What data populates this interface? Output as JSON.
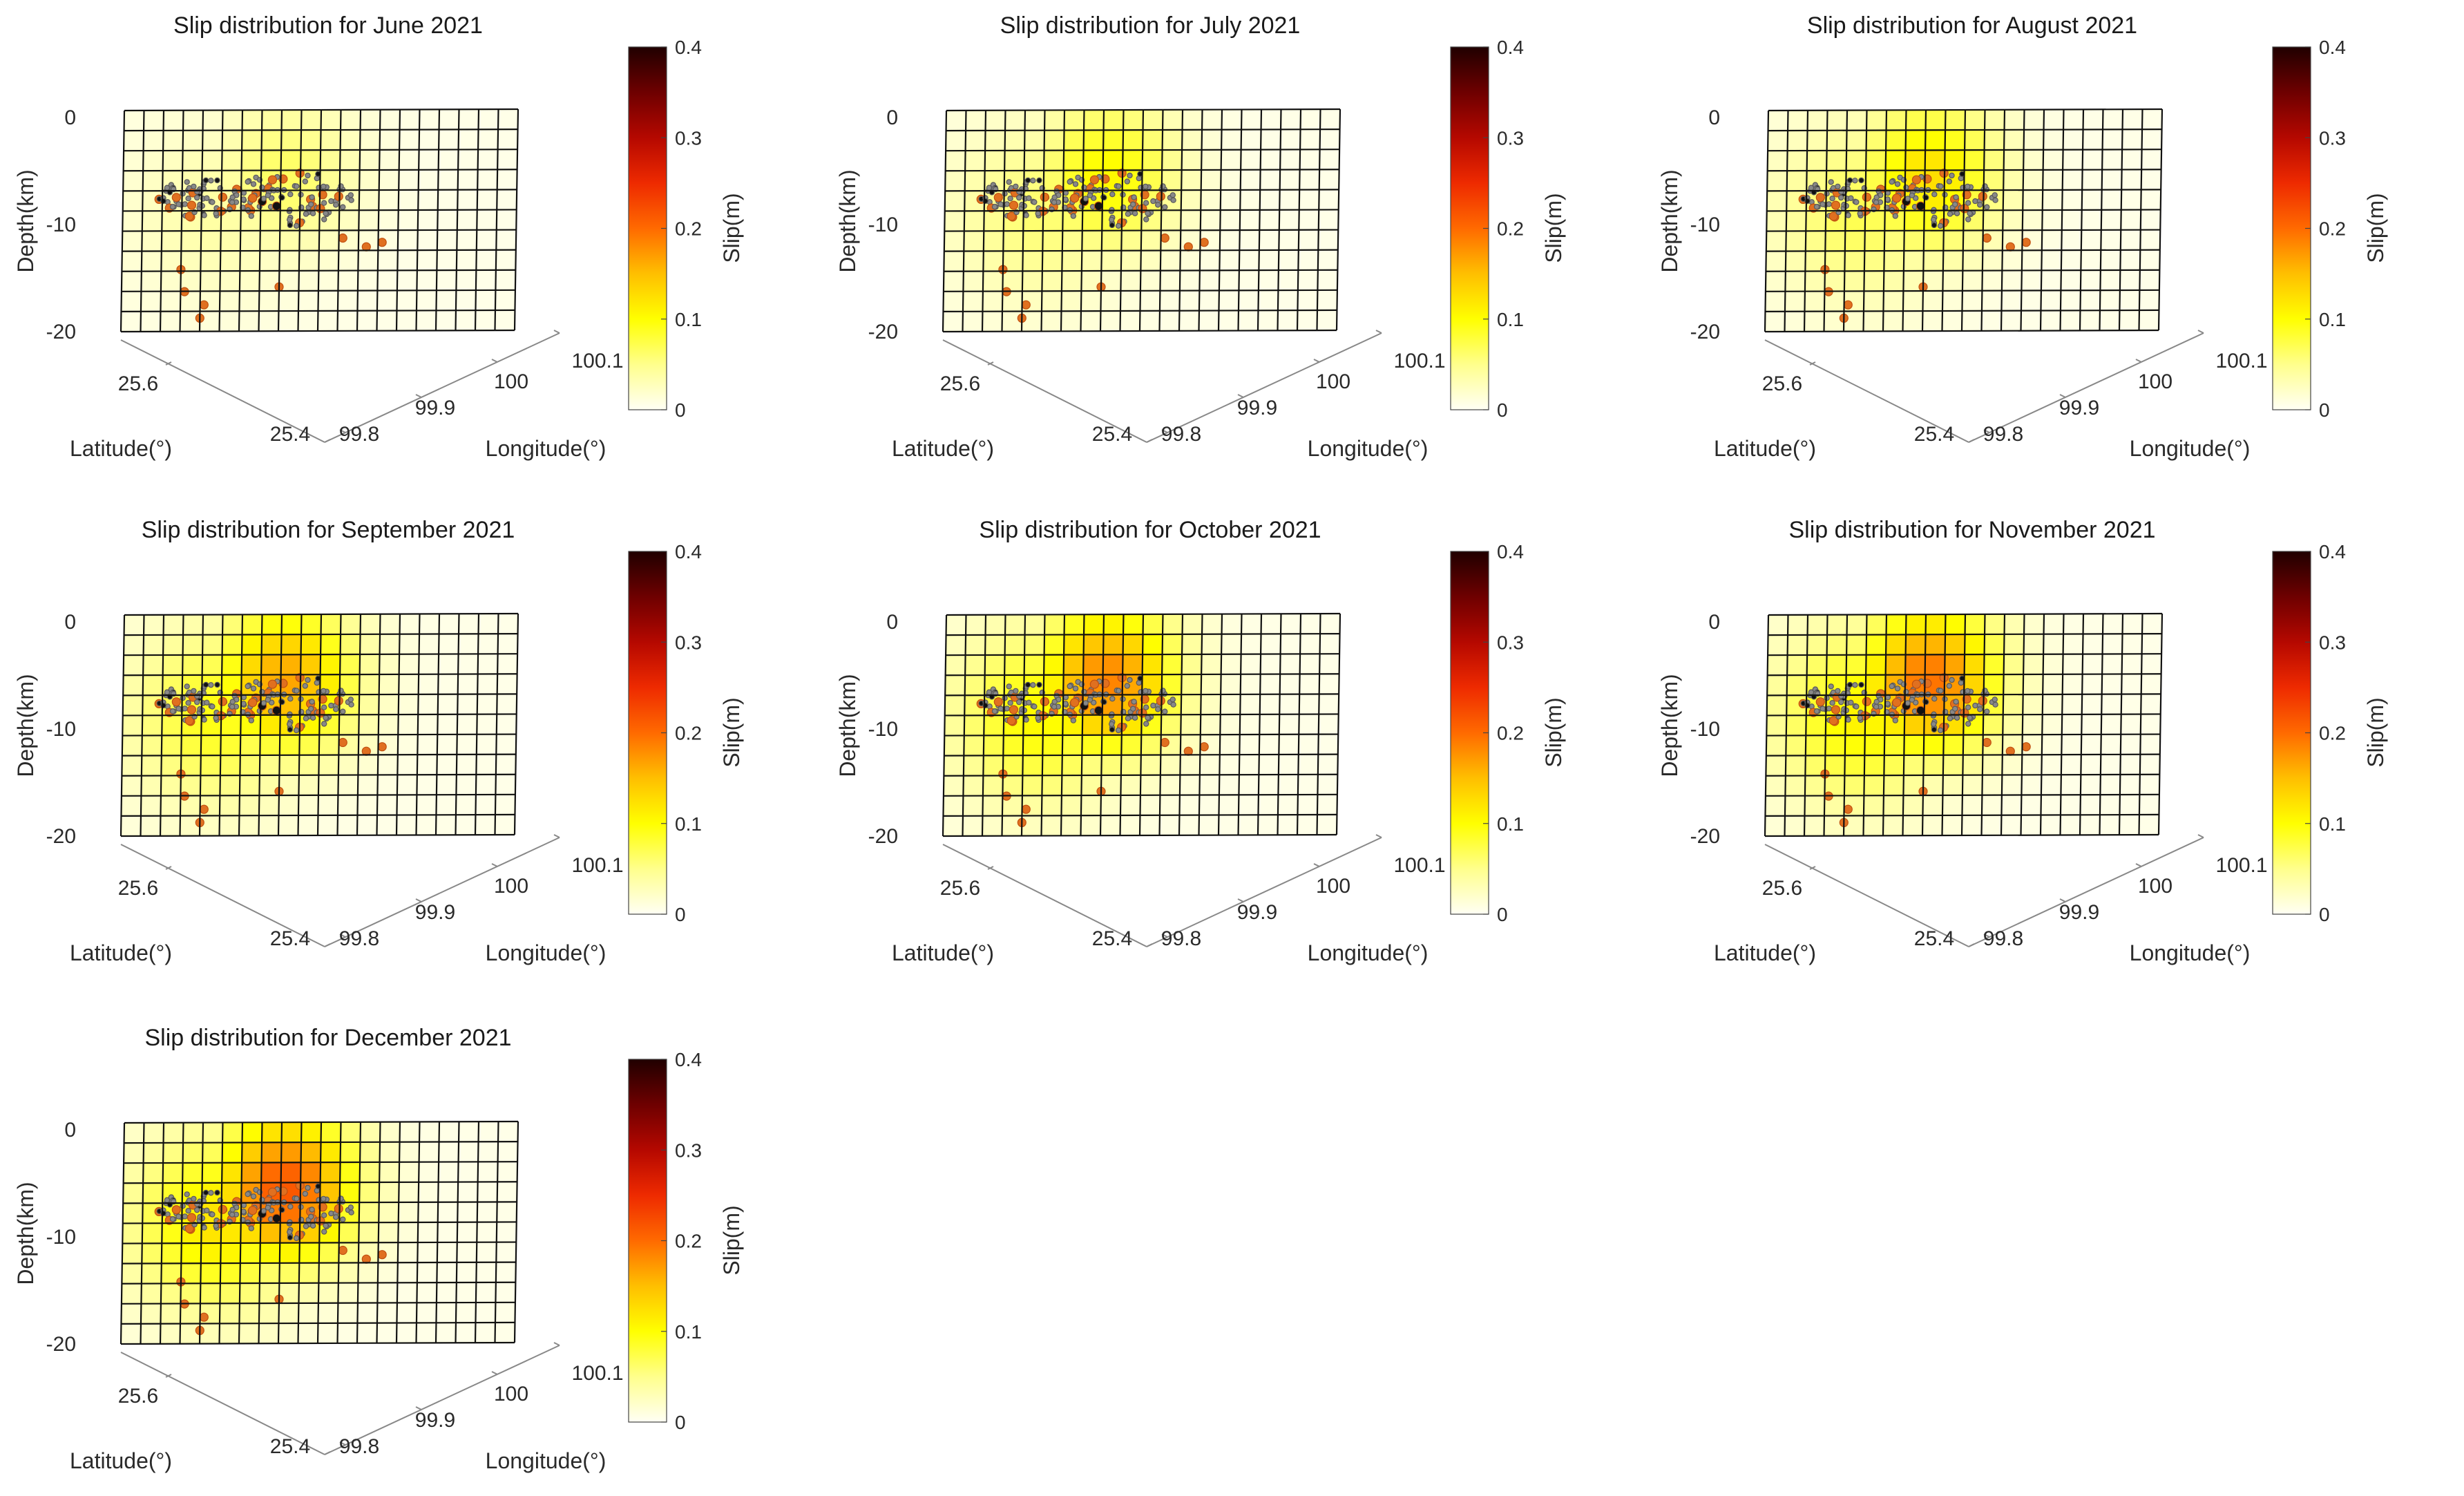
{
  "colors": {
    "colormap": [
      "#fffff4",
      "#ffff8c",
      "#ffff00",
      "#ffbf00",
      "#ff6a00",
      "#ee2a00",
      "#b50800",
      "#6e0000",
      "#200000"
    ],
    "hypocenter_fill": "#888888",
    "hypocenter_edge": "#e07020",
    "grid_line": "#111111"
  },
  "chart_data": [
    {
      "type": "heatmap",
      "title": "Slip distribution for June 2021",
      "xlabel": "Latitude(°)",
      "ylabel": "Longitude(°)",
      "zlabel": "Depth(km)",
      "x_ticks": [
        "25.6",
        "25.4"
      ],
      "y_ticks": [
        "99.8",
        "99.9",
        "100",
        "100.1"
      ],
      "z_ticks": [
        "0",
        "-10",
        "-20"
      ],
      "zlim": [
        -20,
        0
      ],
      "colorbar": {
        "label": "Slip(m)",
        "range": [
          0,
          0.4
        ],
        "ticks": [
          "0",
          "0.1",
          "0.2",
          "0.3",
          "0.4"
        ]
      },
      "peak_slip_m": 0.06,
      "grid": {
        "cols": 20,
        "rows": 11
      }
    },
    {
      "type": "heatmap",
      "title": "Slip distribution for July 2021",
      "xlabel": "Latitude(°)",
      "ylabel": "Longitude(°)",
      "zlabel": "Depth(km)",
      "x_ticks": [
        "25.6",
        "25.4"
      ],
      "y_ticks": [
        "99.8",
        "99.9",
        "100",
        "100.1"
      ],
      "z_ticks": [
        "0",
        "-10",
        "-20"
      ],
      "zlim": [
        -20,
        0
      ],
      "colorbar": {
        "label": "Slip(m)",
        "range": [
          0,
          0.4
        ],
        "ticks": [
          "0",
          "0.1",
          "0.2",
          "0.3",
          "0.4"
        ]
      },
      "peak_slip_m": 0.1,
      "grid": {
        "cols": 20,
        "rows": 11
      }
    },
    {
      "type": "heatmap",
      "title": "Slip distribution for August 2021",
      "xlabel": "Latitude(°)",
      "ylabel": "Longitude(°)",
      "zlabel": "Depth(km)",
      "x_ticks": [
        "25.6",
        "25.4"
      ],
      "y_ticks": [
        "99.8",
        "99.9",
        "100",
        "100.1"
      ],
      "z_ticks": [
        "0",
        "-10",
        "-20"
      ],
      "zlim": [
        -20,
        0
      ],
      "colorbar": {
        "label": "Slip(m)",
        "range": [
          0,
          0.4
        ],
        "ticks": [
          "0",
          "0.1",
          "0.2",
          "0.3",
          "0.4"
        ]
      },
      "peak_slip_m": 0.12,
      "grid": {
        "cols": 20,
        "rows": 11
      }
    },
    {
      "type": "heatmap",
      "title": "Slip distribution for September 2021",
      "xlabel": "Latitude(°)",
      "ylabel": "Longitude(°)",
      "zlabel": "Depth(km)",
      "x_ticks": [
        "25.6",
        "25.4"
      ],
      "y_ticks": [
        "99.8",
        "99.9",
        "100",
        "100.1"
      ],
      "z_ticks": [
        "0",
        "-10",
        "-20"
      ],
      "zlim": [
        -20,
        0
      ],
      "colorbar": {
        "label": "Slip(m)",
        "range": [
          0,
          0.4
        ],
        "ticks": [
          "0",
          "0.1",
          "0.2",
          "0.3",
          "0.4"
        ]
      },
      "peak_slip_m": 0.16,
      "grid": {
        "cols": 20,
        "rows": 11
      }
    },
    {
      "type": "heatmap",
      "title": "Slip distribution for October 2021",
      "xlabel": "Latitude(°)",
      "ylabel": "Longitude(°)",
      "zlabel": "Depth(km)",
      "x_ticks": [
        "25.6",
        "25.4"
      ],
      "y_ticks": [
        "99.8",
        "99.9",
        "100",
        "100.1"
      ],
      "z_ticks": [
        "0",
        "-10",
        "-20"
      ],
      "zlim": [
        -20,
        0
      ],
      "colorbar": {
        "label": "Slip(m)",
        "range": [
          0,
          0.4
        ],
        "ticks": [
          "0",
          "0.1",
          "0.2",
          "0.3",
          "0.4"
        ]
      },
      "peak_slip_m": 0.18,
      "grid": {
        "cols": 20,
        "rows": 11
      }
    },
    {
      "type": "heatmap",
      "title": "Slip distribution for November 2021",
      "xlabel": "Latitude(°)",
      "ylabel": "Longitude(°)",
      "zlabel": "Depth(km)",
      "x_ticks": [
        "25.6",
        "25.4"
      ],
      "y_ticks": [
        "99.8",
        "99.9",
        "100",
        "100.1"
      ],
      "z_ticks": [
        "0",
        "-10",
        "-20"
      ],
      "zlim": [
        -20,
        0
      ],
      "colorbar": {
        "label": "Slip(m)",
        "range": [
          0,
          0.4
        ],
        "ticks": [
          "0",
          "0.1",
          "0.2",
          "0.3",
          "0.4"
        ]
      },
      "peak_slip_m": 0.19,
      "grid": {
        "cols": 20,
        "rows": 11
      }
    },
    {
      "type": "heatmap",
      "title": "Slip distribution for December 2021",
      "xlabel": "Latitude(°)",
      "ylabel": "Longitude(°)",
      "zlabel": "Depth(km)",
      "x_ticks": [
        "25.6",
        "25.4"
      ],
      "y_ticks": [
        "99.8",
        "99.9",
        "100",
        "100.1"
      ],
      "z_ticks": [
        "0",
        "-10",
        "-20"
      ],
      "zlim": [
        -20,
        0
      ],
      "colorbar": {
        "label": "Slip(m)",
        "range": [
          0,
          0.4
        ],
        "ticks": [
          "0",
          "0.1",
          "0.2",
          "0.3",
          "0.4"
        ]
      },
      "peak_slip_m": 0.21,
      "grid": {
        "cols": 20,
        "rows": 11
      }
    }
  ]
}
